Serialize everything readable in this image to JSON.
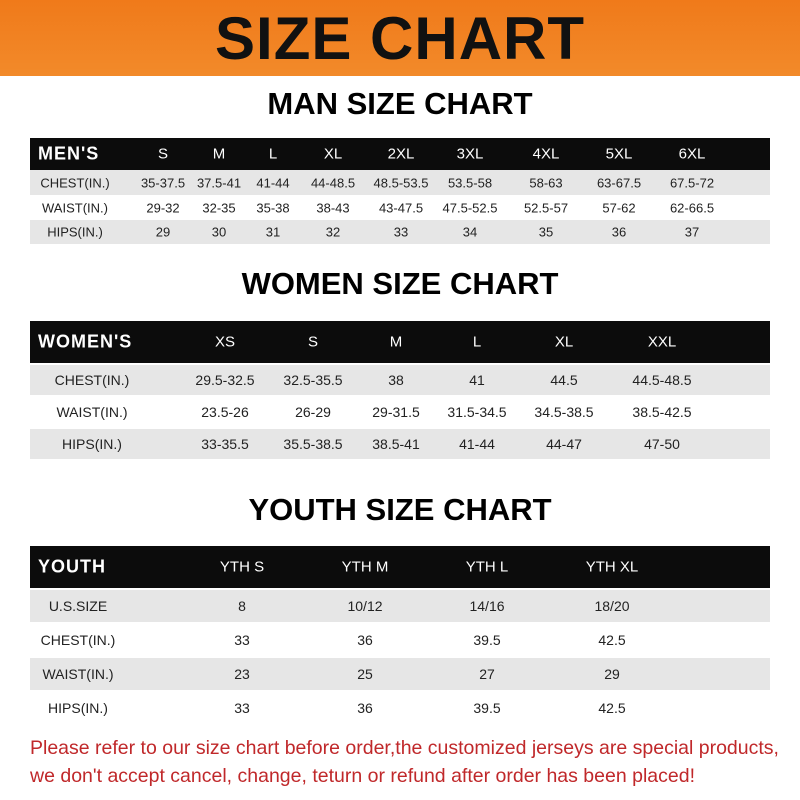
{
  "banner_title": "SIZE CHART",
  "men": {
    "title": "MAN SIZE CHART",
    "header": [
      "MEN'S",
      "S",
      "M",
      "L",
      "XL",
      "2XL",
      "3XL",
      "4XL",
      "5XL",
      "6XL"
    ],
    "rows": [
      [
        "CHEST(IN.)",
        "35-37.5",
        "37.5-41",
        "41-44",
        "44-48.5",
        "48.5-53.5",
        "53.5-58",
        "58-63",
        "63-67.5",
        "67.5-72"
      ],
      [
        "WAIST(IN.)",
        "29-32",
        "32-35",
        "35-38",
        "38-43",
        "43-47.5",
        "47.5-52.5",
        "52.5-57",
        "57-62",
        "62-66.5"
      ],
      [
        "HIPS(IN.)",
        "29",
        "30",
        "31",
        "32",
        "33",
        "34",
        "35",
        "36",
        "37"
      ]
    ]
  },
  "women": {
    "title": "WOMEN SIZE CHART",
    "header": [
      "WOMEN'S",
      "XS",
      "S",
      "M",
      "L",
      "XL",
      "XXL"
    ],
    "rows": [
      [
        "CHEST(IN.)",
        "29.5-32.5",
        "32.5-35.5",
        "38",
        "41",
        "44.5",
        "44.5-48.5"
      ],
      [
        "WAIST(IN.)",
        "23.5-26",
        "26-29",
        "29-31.5",
        "31.5-34.5",
        "34.5-38.5",
        "38.5-42.5"
      ],
      [
        "HIPS(IN.)",
        "33-35.5",
        "35.5-38.5",
        "38.5-41",
        "41-44",
        "44-47",
        "47-50"
      ]
    ]
  },
  "youth": {
    "title": "YOUTH SIZE CHART",
    "header": [
      "YOUTH",
      "YTH S",
      "YTH M",
      "YTH L",
      "YTH XL"
    ],
    "rows": [
      [
        "U.S.SIZE",
        "8",
        "10/12",
        "14/16",
        "18/20"
      ],
      [
        "CHEST(IN.)",
        "33",
        "36",
        "39.5",
        "42.5"
      ],
      [
        "WAIST(IN.)",
        "23",
        "25",
        "27",
        "29"
      ],
      [
        "HIPS(IN.)",
        "33",
        "36",
        "39.5",
        "42.5"
      ]
    ]
  },
  "note": {
    "line1": "Please refer to our size chart before order,the customized jerseys are special products,",
    "line2": "we don't accept cancel, change, teturn or refund after order has been placed!"
  },
  "colors": {
    "banner": "#f07a1a",
    "header_row": "#0c0c0c",
    "stripe": "#e6e6e6",
    "note": "#c0282a"
  }
}
